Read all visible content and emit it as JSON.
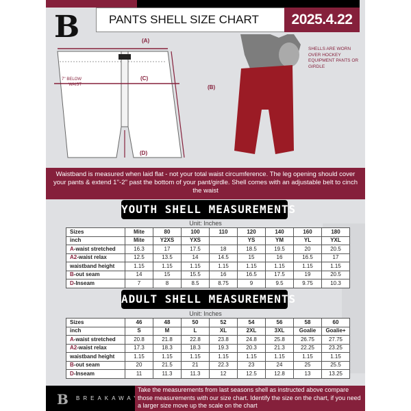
{
  "header": {
    "title": "PANTS SHELL SIZE CHART",
    "date": "2025.4.22"
  },
  "diagram": {
    "label_a": "(A)",
    "label_b": "(B)",
    "label_c": "(C)",
    "label_d": "(D)",
    "below_waist": "7'' BELOW WAIST",
    "shells_note": "SHELLS ARE WORN OVER HOCKEY EQUIPMENT PANTS OR GIRDLE"
  },
  "info_band": "Waistband is measured when laid flat - not your total waist circumference. The leg opening should cover your pants & extend 1''-2'' past the bottom of your pant/girdle. Shell comes with an adjustable belt to cinch the waist",
  "youth": {
    "title": "YOUTH SHELL MEASUREMENTS",
    "unit": "Unit: Inches",
    "rows": [
      {
        "mark": "",
        "label": "Sizes",
        "cells": [
          "Mite",
          "80",
          "100",
          "110",
          "120",
          "140",
          "160",
          "180"
        ]
      },
      {
        "mark": "",
        "label": "inch",
        "cells": [
          "Mite",
          "Y2XS",
          "YXS",
          "",
          "YS",
          "YM",
          "YL",
          "YXL"
        ]
      },
      {
        "mark": "A",
        "label": "-waist stretched",
        "cells": [
          "16.3",
          "17",
          "17.5",
          "18",
          "18.5",
          "19.5",
          "20",
          "20.5"
        ]
      },
      {
        "mark": "A2",
        "label": "-waist relax",
        "cells": [
          "12.5",
          "13.5",
          "14",
          "14.5",
          "15",
          "16",
          "16.5",
          "17"
        ]
      },
      {
        "mark": "",
        "label": "waistband height",
        "cells": [
          "1.15",
          "1.15",
          "1.15",
          "1.15",
          "1.15",
          "1.15",
          "1.15",
          "1.15"
        ]
      },
      {
        "mark": "B",
        "label": "-out seam",
        "cells": [
          "14",
          "15",
          "15.5",
          "16",
          "16.5",
          "17.5",
          "19",
          "20.5"
        ]
      },
      {
        "mark": "D",
        "label": "-Inseam",
        "cells": [
          "7",
          "8",
          "8.5",
          "8.75",
          "9",
          "9.5",
          "9.75",
          "10.3"
        ]
      }
    ]
  },
  "adult": {
    "title": "ADULT SHELL MEASUREMENTS",
    "unit": "Unit: Inches",
    "rows": [
      {
        "mark": "",
        "label": "Sizes",
        "cells": [
          "46",
          "48",
          "50",
          "52",
          "54",
          "56",
          "58",
          "60"
        ]
      },
      {
        "mark": "",
        "label": "inch",
        "cells": [
          "S",
          "M",
          "L",
          "XL",
          "2XL",
          "3XL",
          "Goalie",
          "Goalie+"
        ]
      },
      {
        "mark": "A",
        "label": "-waist stretched",
        "cells": [
          "20.8",
          "21.8",
          "22.8",
          "23.8",
          "24.8",
          "25.8",
          "26.75",
          "27.75"
        ]
      },
      {
        "mark": "A2",
        "label": "-waist relax",
        "cells": [
          "17.3",
          "18.3",
          "18.3",
          "19.3",
          "20.3",
          "21.3",
          "22.25",
          "23.25"
        ]
      },
      {
        "mark": "",
        "label": "waistband height",
        "cells": [
          "1.15",
          "1.15",
          "1.15",
          "1.15",
          "1.15",
          "1.15",
          "1.15",
          "1.15"
        ]
      },
      {
        "mark": "B",
        "label": "-out seam",
        "cells": [
          "20",
          "21.5",
          "21",
          "22.3",
          "23",
          "24",
          "25",
          "25.5"
        ]
      },
      {
        "mark": "D",
        "label": "-Inseam",
        "cells": [
          "11",
          "11.3",
          "11.3",
          "12",
          "12.5",
          "12.8",
          "13",
          "13.25"
        ]
      }
    ]
  },
  "footer": {
    "brand": "BREAKAWAY",
    "logo_letter": "B",
    "text": "Take the measurements from last seasons shell as instructed above compare those measurements  with our size chart. Identify the size on the chart, if you need a larger size move up the scale on the chart"
  },
  "colors": {
    "accent": "#85203b",
    "dark": "#000000",
    "background": "#dfe0e3"
  }
}
